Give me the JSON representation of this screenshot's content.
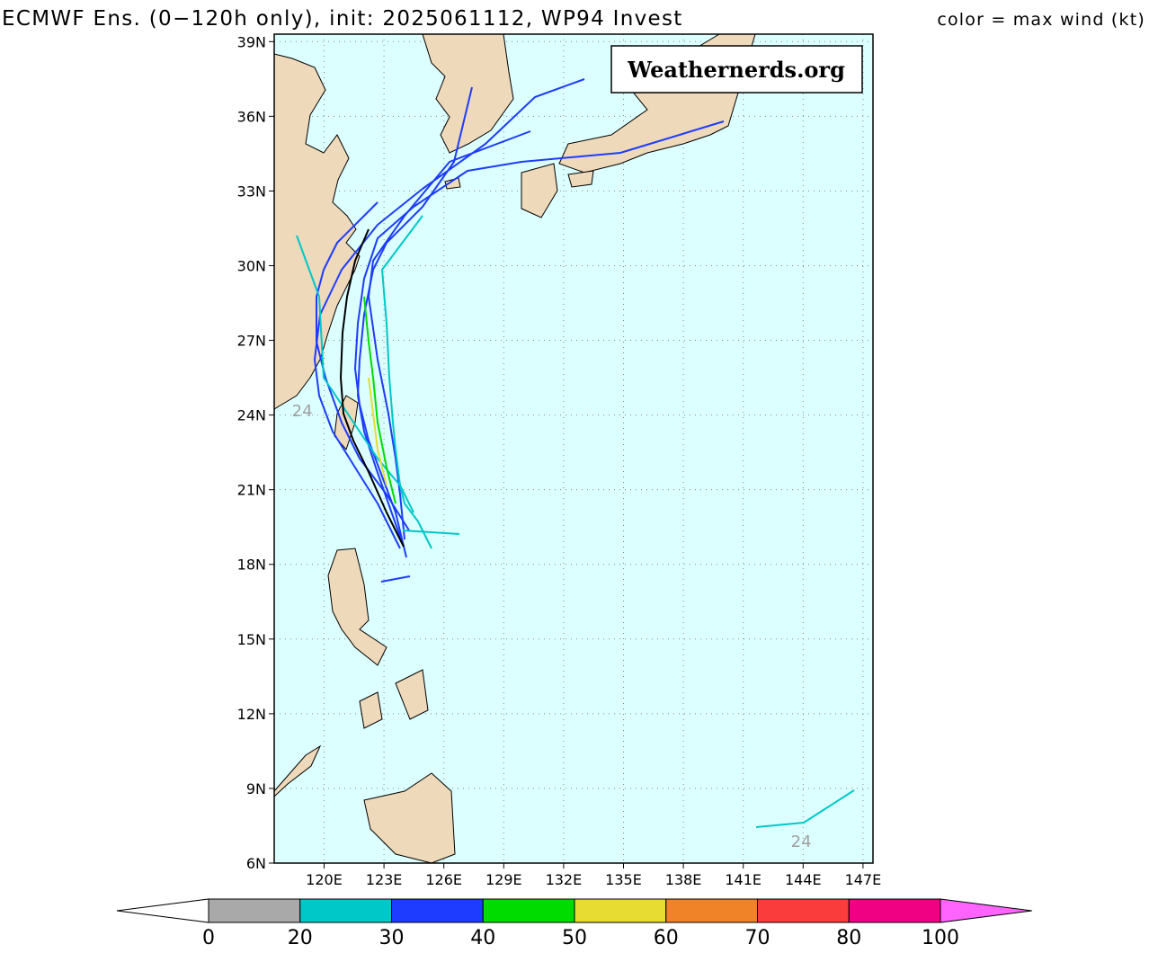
{
  "title": "ECMWF Ens. (0−120h only), init: 2025061112, WP94 Invest",
  "subtitle": "color = max wind (kt)",
  "watermark": "Weathernerds.org",
  "map": {
    "lon_range": [
      117.5,
      147.5
    ],
    "lat_range": [
      6,
      39.3
    ],
    "lon_ticks": [
      {
        "value": 120,
        "label": "120E"
      },
      {
        "value": 123,
        "label": "123E"
      },
      {
        "value": 126,
        "label": "126E"
      },
      {
        "value": 129,
        "label": "129E"
      },
      {
        "value": 132,
        "label": "132E"
      },
      {
        "value": 135,
        "label": "135E"
      },
      {
        "value": 138,
        "label": "138E"
      },
      {
        "value": 141,
        "label": "141E"
      },
      {
        "value": 144,
        "label": "144E"
      },
      {
        "value": 147,
        "label": "147E"
      }
    ],
    "lat_ticks": [
      {
        "value": 6,
        "label": "6N"
      },
      {
        "value": 9,
        "label": "9N"
      },
      {
        "value": 12,
        "label": "12N"
      },
      {
        "value": 15,
        "label": "15N"
      },
      {
        "value": 18,
        "label": "18N"
      },
      {
        "value": 21,
        "label": "21N"
      },
      {
        "value": 24,
        "label": "24N"
      },
      {
        "value": 27,
        "label": "27N"
      },
      {
        "value": 30,
        "label": "30N"
      },
      {
        "value": 33,
        "label": "33N"
      },
      {
        "value": 36,
        "label": "36N"
      },
      {
        "value": 39,
        "label": "39N"
      }
    ],
    "annotations": [
      {
        "text": "24",
        "lon": 118.9,
        "lat": 24.2
      },
      {
        "text": "24",
        "lon": 143.9,
        "lat": 6.9
      }
    ]
  },
  "colorbar": {
    "levels": [
      0,
      20,
      30,
      40,
      50,
      60,
      70,
      80,
      100
    ],
    "colors": [
      "#a9a9a9",
      "#00c8c8",
      "#1e3cff",
      "#00dc00",
      "#e6dc32",
      "#f08228",
      "#fa3c3c",
      "#f00082",
      "#ff64ff"
    ],
    "under_color": "#ffffff"
  }
}
